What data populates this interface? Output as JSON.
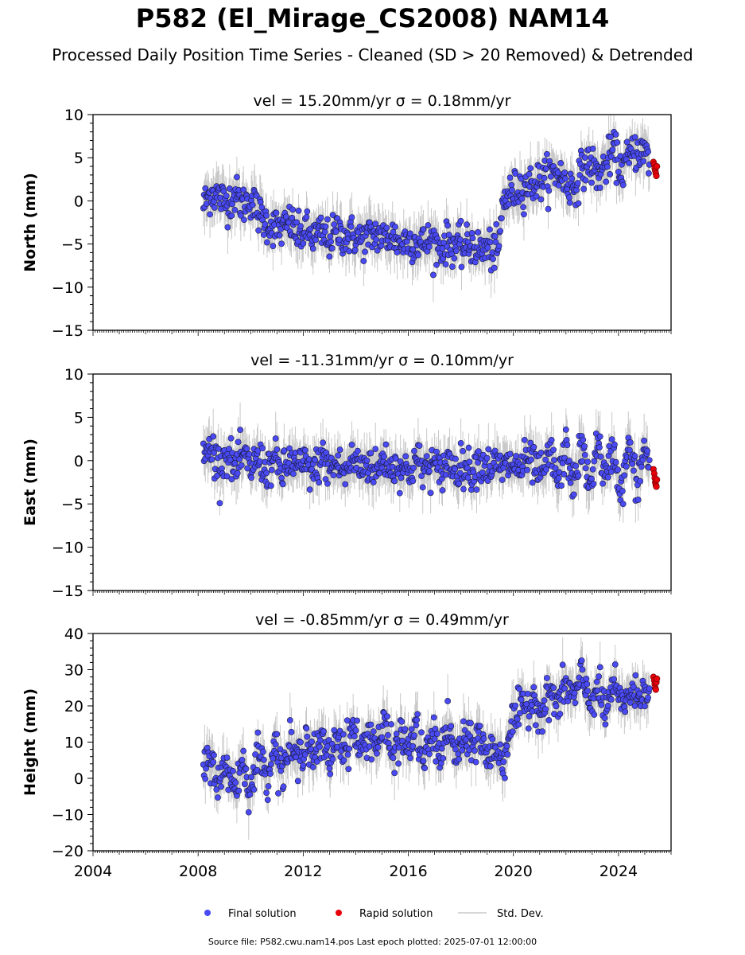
{
  "title": "P582 (El_Mirage_CS2008) NAM14",
  "subtitle": "Processed Daily Position Time Series - Cleaned (SD > 20 Removed) & Detrended",
  "footer": "Source file: P582.cwu.nam14.pos  Last epoch plotted: 2025-07-01 12:00:00",
  "colors": {
    "final": "#4a4af5",
    "rapid": "#e8000b",
    "stddev": "#c8c8c8"
  },
  "chart_data": [
    {
      "type": "scatter",
      "title": "vel = 15.20mm/yr   σ = 0.18mm/yr",
      "ylabel": "North (mm)",
      "xlim": [
        2004,
        2026
      ],
      "ylim": [
        -15,
        10
      ],
      "yticks": [
        -15,
        -10,
        -5,
        0,
        5,
        10
      ],
      "series": [
        {
          "name": "Final solution",
          "x": [
            2008.2,
            2008.5,
            2008.8,
            2009.1,
            2009.4,
            2009.7,
            2010.0,
            2010.3,
            2010.6,
            2010.9,
            2011.2,
            2011.5,
            2011.8,
            2012.1,
            2012.4,
            2012.7,
            2013.0,
            2013.3,
            2013.6,
            2013.9,
            2014.2,
            2014.5,
            2014.8,
            2015.1,
            2015.4,
            2015.7,
            2016.0,
            2016.3,
            2016.6,
            2016.9,
            2017.2,
            2017.5,
            2017.8,
            2018.1,
            2018.4,
            2018.7,
            2019.0,
            2019.3,
            2019.45,
            2019.6,
            2019.9,
            2020.2,
            2020.5,
            2020.8,
            2021.1,
            2021.4,
            2021.7,
            2022.0,
            2022.3,
            2022.6,
            2022.9,
            2023.2,
            2023.5,
            2023.8,
            2024.1,
            2024.4,
            2024.7,
            2025.0,
            2025.2
          ],
          "y": [
            -0.5,
            1.0,
            0.5,
            -0.2,
            0.8,
            -0.5,
            0.3,
            -1.5,
            -2.5,
            -3.0,
            -3.3,
            -2.5,
            -4.0,
            -3.5,
            -4.2,
            -3.8,
            -4.5,
            -3.5,
            -4.2,
            -4.0,
            -4.5,
            -4.2,
            -3.8,
            -4.4,
            -4.0,
            -5.0,
            -4.5,
            -4.8,
            -5.0,
            -4.5,
            -5.5,
            -4.8,
            -5.2,
            -5.5,
            -5.0,
            -5.8,
            -5.5,
            -6.0,
            -5.5,
            0.0,
            0.8,
            1.5,
            1.8,
            2.0,
            2.5,
            3.0,
            3.3,
            2.0,
            1.5,
            3.5,
            4.5,
            3.0,
            4.0,
            6.0,
            3.5,
            5.0,
            6.0,
            5.5,
            4.8
          ]
        },
        {
          "name": "Rapid solution",
          "x": [
            2025.33,
            2025.36,
            2025.38,
            2025.4,
            2025.42,
            2025.44,
            2025.46
          ],
          "y": [
            4.5,
            4.2,
            3.8,
            3.5,
            3.2,
            2.9,
            4.0
          ]
        }
      ],
      "std_dev_mm": 2.5
    },
    {
      "type": "scatter",
      "title": "vel = -11.31mm/yr   σ = 0.10mm/yr",
      "ylabel": "East (mm)",
      "xlim": [
        2004,
        2026
      ],
      "ylim": [
        -15,
        10
      ],
      "yticks": [
        -15,
        -10,
        -5,
        0,
        5,
        10
      ],
      "series": [
        {
          "name": "Final solution",
          "x": [
            2008.2,
            2008.5,
            2008.8,
            2009.1,
            2009.4,
            2009.7,
            2010.0,
            2010.3,
            2010.6,
            2010.9,
            2011.2,
            2011.5,
            2011.8,
            2012.1,
            2012.4,
            2012.7,
            2013.0,
            2013.3,
            2013.6,
            2013.9,
            2014.2,
            2014.5,
            2014.8,
            2015.1,
            2015.4,
            2015.7,
            2016.0,
            2016.3,
            2016.6,
            2016.9,
            2017.2,
            2017.5,
            2017.8,
            2018.1,
            2018.4,
            2018.7,
            2019.0,
            2019.3,
            2019.6,
            2019.9,
            2020.2,
            2020.5,
            2020.8,
            2021.1,
            2021.4,
            2021.7,
            2022.0,
            2022.3,
            2022.6,
            2022.9,
            2023.2,
            2023.5,
            2023.8,
            2024.1,
            2024.4,
            2024.7,
            2025.0,
            2025.2
          ],
          "y": [
            0.5,
            1.5,
            -0.5,
            0.8,
            -1.0,
            0.5,
            -0.8,
            0.3,
            -1.2,
            0.2,
            -1.5,
            0.0,
            -0.8,
            -0.5,
            -1.5,
            0.5,
            -1.0,
            -0.3,
            -1.5,
            0.2,
            -0.8,
            -0.3,
            -1.2,
            0.3,
            -1.0,
            -0.5,
            -1.5,
            0.2,
            -1.2,
            -0.3,
            -1.5,
            0.0,
            -1.0,
            -0.5,
            -1.2,
            0.0,
            -0.8,
            -0.5,
            -1.0,
            -0.3,
            -1.0,
            0.0,
            -0.5,
            -2.0,
            1.0,
            -2.5,
            1.5,
            -3.0,
            2.0,
            -3.5,
            2.5,
            -2.5,
            1.5,
            -4.0,
            2.0,
            -3.0,
            1.5,
            -0.5
          ]
        },
        {
          "name": "Rapid solution",
          "x": [
            2025.33,
            2025.36,
            2025.38,
            2025.4,
            2025.42,
            2025.44,
            2025.46
          ],
          "y": [
            -1.0,
            -1.5,
            -2.0,
            -2.5,
            -2.8,
            -3.0,
            -2.2
          ]
        }
      ],
      "std_dev_mm": 2.5
    },
    {
      "type": "scatter",
      "title": "vel = -0.85mm/yr   σ = 0.49mm/yr",
      "ylabel": "Height (mm)",
      "xlabel": "",
      "xlim": [
        2004,
        2026
      ],
      "ylim": [
        -20,
        40
      ],
      "yticks": [
        -20,
        -10,
        0,
        10,
        20,
        30,
        40
      ],
      "xticks": [
        2004,
        2008,
        2012,
        2016,
        2020,
        2024
      ],
      "series": [
        {
          "name": "Final solution",
          "x": [
            2008.2,
            2008.5,
            2008.8,
            2009.1,
            2009.4,
            2009.7,
            2010.0,
            2010.3,
            2010.6,
            2010.9,
            2011.2,
            2011.5,
            2011.8,
            2012.1,
            2012.4,
            2012.7,
            2013.0,
            2013.3,
            2013.6,
            2013.9,
            2014.2,
            2014.5,
            2014.8,
            2015.1,
            2015.4,
            2015.7,
            2016.0,
            2016.3,
            2016.6,
            2016.9,
            2017.2,
            2017.5,
            2017.8,
            2018.1,
            2018.4,
            2018.7,
            2019.0,
            2019.3,
            2019.6,
            2019.9,
            2020.2,
            2020.5,
            2020.8,
            2021.1,
            2021.4,
            2021.7,
            2022.0,
            2022.3,
            2022.6,
            2022.9,
            2023.2,
            2023.5,
            2023.8,
            2024.1,
            2024.4,
            2024.7,
            2025.0,
            2025.2
          ],
          "y": [
            2,
            6,
            -2,
            4,
            -3,
            5,
            -4,
            8,
            0,
            10,
            2,
            9,
            4,
            12,
            6,
            10,
            5,
            12,
            8,
            14,
            7,
            13,
            9,
            15,
            6,
            12,
            8,
            14,
            4,
            12,
            7,
            14,
            6,
            11,
            8,
            13,
            5,
            9,
            4,
            15,
            18,
            20,
            22,
            18,
            24,
            20,
            26,
            22,
            28,
            21,
            25,
            18,
            26,
            20,
            24,
            22,
            26,
            24
          ]
        },
        {
          "name": "Rapid solution",
          "x": [
            2025.33,
            2025.36,
            2025.38,
            2025.4,
            2025.42,
            2025.44,
            2025.46
          ],
          "y": [
            28,
            27,
            26,
            25,
            24.5,
            26.5,
            27.5
          ]
        }
      ],
      "std_dev_mm": 6
    }
  ],
  "legend": {
    "position": "bottom-center",
    "items": [
      {
        "label": "Final solution",
        "marker": "dot",
        "color": "#4a4af5"
      },
      {
        "label": "Rapid solution",
        "marker": "dot",
        "color": "#e8000b"
      },
      {
        "label": "Std. Dev.",
        "marker": "line",
        "color": "#c8c8c8"
      }
    ]
  }
}
